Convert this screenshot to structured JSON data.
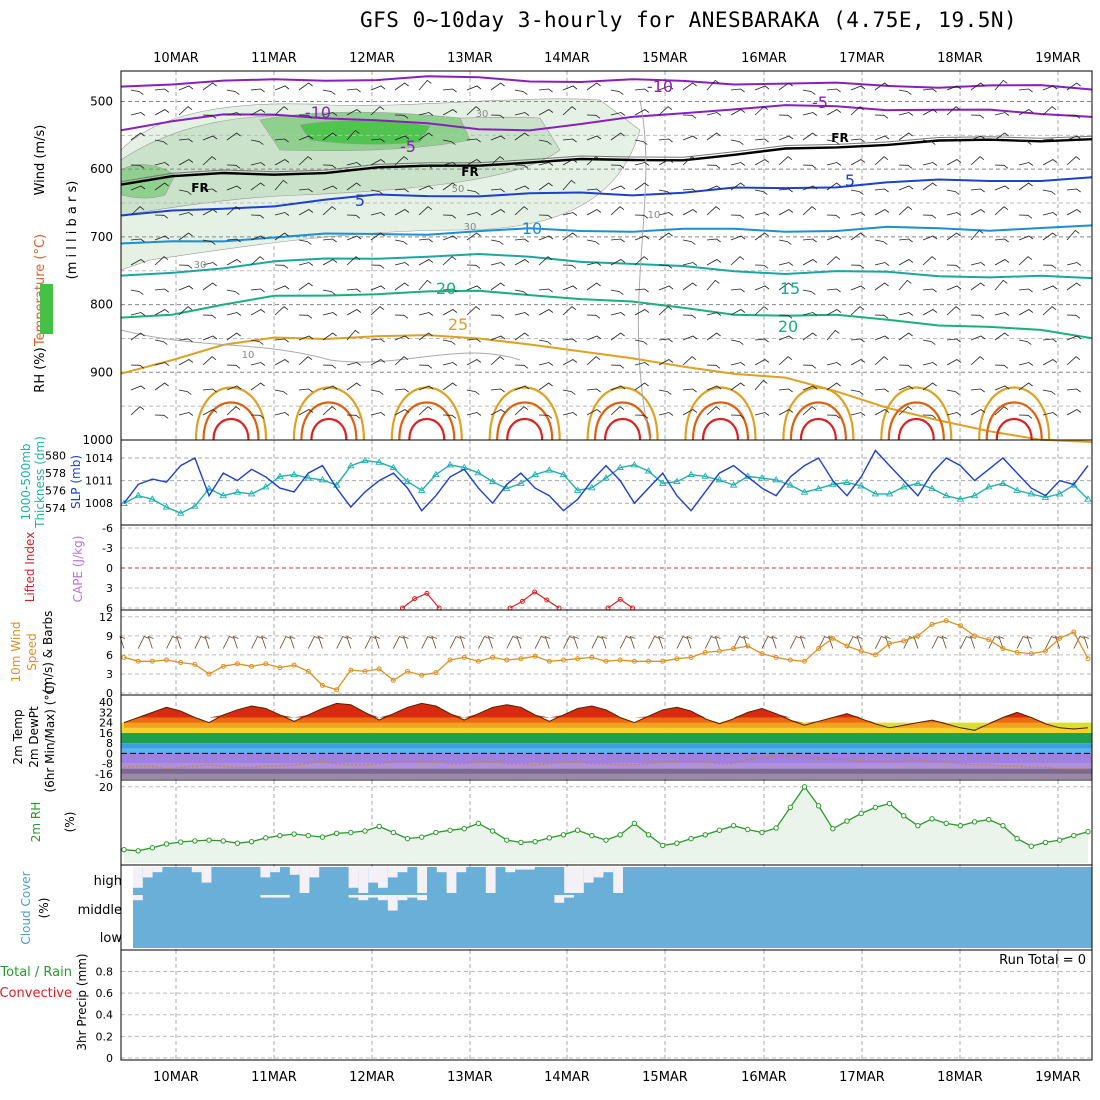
{
  "title": "GFS 0~10day 3-hourly for ANESBARAKA (4.75E, 19.5N)",
  "colors": {
    "purple": "#8a1fbf",
    "blue": "#1c3fd6",
    "lightblue": "#1c8fd6",
    "teal": "#18a8a0",
    "green": "#1ab07a",
    "orange": "#e0a020",
    "darkorange": "#e06010",
    "red": "#e02020",
    "slp": "#1c3fd6",
    "thickness": "#20b0b0",
    "wind10": "#e09020",
    "rh2m": "#2a9a2a",
    "cloud": "#6aafd8",
    "cloudgap": "#f3f0f6"
  },
  "chart_data": {
    "type": "line",
    "dates": [
      "10MAR",
      "11MAR",
      "12MAR",
      "13MAR",
      "14MAR",
      "15MAR",
      "16MAR",
      "17MAR",
      "18MAR",
      "19MAR"
    ],
    "panels": [
      {
        "name": "upper_air",
        "ylabel_parts": [
          {
            "text": "Wind (m/s)",
            "color": "#000000"
          },
          {
            "text": "Temperature (°C)",
            "color": "#e06030"
          },
          {
            "text": "(m i l l i b a r s)",
            "color": "#000000"
          },
          {
            "text": "RH (%)",
            "color": "#000000"
          }
        ],
        "yticks": [
          500,
          600,
          700,
          800,
          900,
          1000
        ],
        "ylim": [
          455,
          1000
        ],
        "contour_labels": [
          "-10",
          "-10",
          "-5",
          "-5",
          "FR",
          "FR",
          "FR",
          "5",
          "5",
          "10",
          "15",
          "20",
          "20",
          "25",
          "30",
          "30",
          "30",
          "50",
          "10",
          "10"
        ],
        "isotherms": [
          {
            "label": "-10",
            "color": "purple",
            "p": [
              478,
              472,
              470,
              470,
              468,
              466,
              465,
              466,
              468,
              470,
              470,
              470,
              472,
              474,
              475,
              476,
              477,
              478,
              478,
              480
            ]
          },
          {
            "label": "-5",
            "color": "purple",
            "p": [
              540,
              528,
              522,
              520,
              522,
              528,
              535,
              540,
              540,
              535,
              525,
              515,
              510,
              508,
              508,
              510,
              512,
              515,
              518,
              520
            ]
          },
          {
            "label": "FR",
            "color": "black",
            "p": [
              620,
              612,
              608,
              606,
              604,
              600,
              596,
              592,
              590,
              588,
              586,
              584,
              580,
              572,
              566,
              562,
              560,
              558,
              556,
              555
            ]
          },
          {
            "label": "5",
            "color": "blue",
            "p": [
              668,
              664,
              658,
              652,
              646,
              640,
              638,
              638,
              638,
              636,
              636,
              634,
              630,
              628,
              624,
              620,
              618,
              616,
              615,
              614
            ]
          },
          {
            "label": "10",
            "color": "lightblue",
            "p": [
              712,
              708,
              704,
              700,
              698,
              696,
              694,
              692,
              690,
              690,
              690,
              690,
              690,
              690,
              690,
              688,
              688,
              688,
              687,
              686
            ]
          },
          {
            "label": "15",
            "color": "teal",
            "p": [
              760,
              752,
              744,
              738,
              734,
              730,
              728,
              728,
              730,
              734,
              740,
              746,
              750,
              752,
              752,
              754,
              756,
              758,
              760,
              762
            ]
          },
          {
            "label": "20",
            "color": "green",
            "p": [
              820,
              812,
              800,
              790,
              786,
              782,
              782,
              782,
              784,
              790,
              798,
              806,
              812,
              816,
              818,
              822,
              828,
              834,
              840,
              848
            ]
          },
          {
            "label": "25",
            "color": "orange",
            "p": [
              900,
              880,
              862,
              850,
              848,
              846,
              848,
              850,
              856,
              870,
              882,
              890,
              900,
              910,
              930,
              950,
              970,
              990,
              1000,
              1000
            ]
          }
        ]
      },
      {
        "name": "slp_thickness",
        "ylabel_parts": [
          {
            "text": "1000-500mb",
            "color": "#20b0b0"
          },
          {
            "text": "Thickness (dm)",
            "color": "#20b0b0"
          },
          {
            "text": "SLP (mb)",
            "color": "#1c3fd6"
          }
        ],
        "left_ticks": [
          574,
          576,
          578,
          580
        ],
        "right_ticks": [
          1008,
          1011,
          1014
        ],
        "left_lim": [
          572.4,
          581.4
        ],
        "right_lim": [
          1005.5,
          1016
        ],
        "series": [
          {
            "name": "Thickness",
            "axis": "left",
            "values": [
              574.5,
              575.4,
              575.0,
              574.1,
              573.4,
              574.2,
              576.2,
              575.4,
              575.8,
              575.6,
              576.4,
              577.6,
              577.8,
              577.4,
              577.2,
              576.6,
              578.8,
              579.4,
              579.2,
              578.6,
              577.0,
              576.0,
              577.8,
              578.9,
              578.6,
              578.0,
              577.0,
              576.2,
              576.8,
              577.8,
              578.3,
              577.8,
              576.0,
              576.3,
              577.4,
              578.6,
              578.9,
              578.2,
              576.8,
              577.0,
              577.8,
              577.6,
              577.2,
              576.6,
              577.6,
              577.4,
              577.2,
              576.6,
              575.8,
              576.2,
              576.7,
              576.9,
              576.5,
              575.6,
              575.6,
              576.4,
              576.8,
              576.2,
              575.4,
              575.0,
              575.4,
              576.4,
              576.8,
              576.0,
              575.6,
              575.2,
              575.6,
              576.6,
              575.0
            ]
          },
          {
            "name": "SLP",
            "axis": "right",
            "values": [
              1008.0,
              1010.5,
              1011.2,
              1010.8,
              1013.0,
              1014.0,
              1009.0,
              1012.0,
              1011.0,
              1012.5,
              1011.5,
              1010.0,
              1009.5,
              1012.0,
              1013.0,
              1010.0,
              1007.5,
              1009.5,
              1011.0,
              1012.0,
              1010.0,
              1007.0,
              1009.0,
              1011.5,
              1012.5,
              1010.0,
              1008.0,
              1010.5,
              1012.0,
              1010.0,
              1009.0,
              1007.0,
              1008.5,
              1011.0,
              1013.0,
              1011.0,
              1008.0,
              1010.0,
              1012.0,
              1009.0,
              1007.0,
              1009.5,
              1012.0,
              1013.0,
              1011.5,
              1010.0,
              1009.0,
              1011.5,
              1013.0,
              1014.0,
              1011.0,
              1009.0,
              1011.5,
              1015.0,
              1013.0,
              1011.0,
              1009.0,
              1012.0,
              1014.0,
              1013.0,
              1011.0,
              1012.5,
              1014.0,
              1012.0,
              1010.0,
              1009.0,
              1011.0,
              1010.5,
              1013.0
            ]
          }
        ]
      },
      {
        "name": "li_cape",
        "ylabel_parts": [
          {
            "text": "Lifted Index",
            "color": "#e02020"
          },
          {
            "text": "CAPE (J/kg)",
            "color": "#c070e0"
          }
        ],
        "yticks": [
          "-6",
          "-3",
          "0",
          "3",
          "6"
        ],
        "ylim": [
          -6,
          6
        ],
        "segments": [
          {
            "x0": 2.7,
            "values": [
              6.0,
              4.6,
              3.8,
              6.0
            ]
          },
          {
            "x0": 3.8,
            "values": [
              6.0,
              5.0,
              3.6,
              4.8,
              6.0
            ]
          },
          {
            "x0": 4.8,
            "values": [
              6.0,
              4.7,
              6.0
            ]
          }
        ]
      },
      {
        "name": "wind10m",
        "ylabel_parts": [
          {
            "text": "10m Wind",
            "color": "#e09020"
          },
          {
            "text": "Speed",
            "color": "#e09020"
          },
          {
            "text": "(m/s) & Barbs",
            "color": "#000000"
          }
        ],
        "yticks": [
          0,
          3,
          6,
          9,
          12
        ],
        "ylim": [
          0,
          12.6
        ],
        "values": [
          5.6,
          5.0,
          5.0,
          5.2,
          4.8,
          4.5,
          3.0,
          4.2,
          4.6,
          4.2,
          4.6,
          4.0,
          4.4,
          3.4,
          1.2,
          0.5,
          3.6,
          3.4,
          3.8,
          2.0,
          3.4,
          2.8,
          3.2,
          5.2,
          5.6,
          5.0,
          5.6,
          5.2,
          5.4,
          5.8,
          5.0,
          5.2,
          5.4,
          5.6,
          5.0,
          5.2,
          5.0,
          5.0,
          5.0,
          5.4,
          5.6,
          6.4,
          6.6,
          7.0,
          7.4,
          6.2,
          5.6,
          5.2,
          5.0,
          7.0,
          8.6,
          7.4,
          6.6,
          6.0,
          7.8,
          8.2,
          9.0,
          10.8,
          11.4,
          10.6,
          9.0,
          8.4,
          7.0,
          6.4,
          6.2,
          6.6,
          8.6,
          9.6,
          5.4
        ]
      },
      {
        "name": "temp2m",
        "ylabel_parts": [
          {
            "text": "2m Temp",
            "color": "#000000"
          },
          {
            "text": "2m DewPt",
            "color": "#000000"
          },
          {
            "text": "(6hr Min/Max) (°C)",
            "color": "#000000"
          }
        ],
        "yticks": [
          40,
          32,
          24,
          16,
          8,
          0,
          -8,
          -16
        ],
        "ylim": [
          -20,
          44
        ],
        "temp": [
          24,
          28,
          32,
          36,
          33,
          28,
          24,
          30,
          34,
          37,
          35,
          30,
          25,
          30,
          35,
          39,
          38,
          32,
          26,
          31,
          36,
          39,
          37,
          31,
          26,
          31,
          36,
          38,
          36,
          30,
          25,
          30,
          35,
          37,
          34,
          28,
          24,
          29,
          34,
          36,
          33,
          27,
          23,
          27,
          32,
          35,
          31,
          26,
          22,
          25,
          28,
          31,
          27,
          23,
          20,
          22,
          24,
          26,
          23,
          20,
          18,
          23,
          28,
          32,
          28,
          23,
          20,
          19,
          20
        ],
        "dewpt": [
          -11,
          -10,
          -10,
          -12,
          -11,
          -10,
          -9,
          -10,
          -11,
          -11,
          -10,
          -10,
          -9,
          -8,
          -7,
          -8,
          -9,
          -9,
          -8,
          -7,
          -6,
          -7,
          -7,
          -8,
          -8,
          -7,
          -7,
          -8,
          -8,
          -9,
          -8,
          -7,
          -7,
          -8,
          -8,
          -9,
          -9,
          -8,
          -7,
          -7,
          -6,
          -7,
          -8,
          -8,
          -5,
          -3,
          -2,
          -2,
          -3,
          -4,
          -5,
          -5,
          -6,
          -6,
          -7,
          -6,
          -5,
          -6,
          -7,
          -8,
          -9,
          -9,
          -10,
          -10,
          -11,
          -11,
          -12,
          -12,
          -12
        ]
      },
      {
        "name": "rh2m",
        "ylabel_parts": [
          {
            "text": "2m RH",
            "color": "#2a9a2a"
          },
          {
            "text": "(%)",
            "color": "#000000"
          }
        ],
        "yticks": [
          20
        ],
        "ylim": [
          0,
          21
        ],
        "values": [
          3.5,
          3.2,
          4.0,
          5.0,
          5.5,
          5.8,
          6.0,
          5.8,
          5.2,
          5.6,
          6.6,
          7.2,
          7.6,
          7.2,
          6.8,
          7.8,
          8.0,
          8.4,
          9.6,
          8.0,
          6.4,
          6.8,
          8.0,
          8.6,
          9.0,
          10.4,
          8.4,
          6.0,
          5.4,
          5.6,
          6.6,
          7.4,
          8.6,
          7.2,
          6.0,
          7.4,
          10.4,
          7.4,
          4.6,
          5.2,
          6.4,
          7.4,
          8.6,
          9.8,
          8.8,
          8.0,
          9.2,
          14.6,
          20.0,
          15.0,
          9.0,
          11.0,
          13.0,
          14.6,
          15.6,
          12.4,
          9.8,
          11.6,
          10.4,
          9.8,
          10.8,
          11.4,
          9.8,
          6.4,
          4.4,
          5.4,
          6.0,
          7.2,
          8.2
        ]
      },
      {
        "name": "cloud_cover",
        "ylabel_parts": [
          {
            "text": "Cloud Cover",
            "color": "#4aa0d0"
          },
          {
            "text": "(%)",
            "color": "#000000"
          }
        ],
        "levels": [
          "high",
          "middle",
          "low"
        ],
        "high_gap": [
          0.8,
          0.4,
          0.2,
          0.0,
          0.0,
          0.0,
          0.2,
          0.6,
          0.0,
          0.0,
          0.0,
          0.0,
          0.0,
          0.4,
          0.2,
          0.0,
          0.3,
          1.0,
          0.4,
          0.0,
          0.0,
          0.0,
          0.8,
          1.0,
          0.6,
          0.8,
          0.4,
          0.2,
          0.0,
          1.0,
          0.0,
          0.2,
          1.0,
          0.2,
          0.0,
          0.0,
          1.0,
          0.0,
          0.2,
          0.1,
          0.1,
          0.0,
          0.0,
          0.0,
          1.0,
          1.0,
          0.6,
          0.4,
          0.2,
          1.0,
          0.0,
          0.0
        ],
        "mid_gap": [
          0.2,
          0.0,
          0.0,
          0.0,
          0.0,
          0.0,
          0.0,
          0.0,
          0.0,
          0.0,
          0.0,
          0.0,
          0.0,
          0.1,
          0.1,
          0.1,
          0.0,
          0.0,
          0.0,
          0.0,
          0.0,
          0.0,
          0.1,
          0.2,
          0.1,
          0.2,
          0.6,
          0.2,
          0.1,
          0.2,
          0.0,
          0.0,
          0.0,
          0.0,
          0.0,
          0.0,
          0.0,
          0.0,
          0.0,
          0.0,
          0.0,
          0.0,
          0.0,
          0.3,
          0.1,
          0.0,
          0.0,
          0.0,
          0.0,
          0.0,
          0.0,
          0.0
        ]
      },
      {
        "name": "precip",
        "ylabel_parts": [
          {
            "text": "Total / Rain",
            "color": "#2a9a2a"
          },
          {
            "text": "Convective",
            "color": "#e02020"
          },
          {
            "text": "3hr Precip (mm)",
            "color": "#000000"
          }
        ],
        "yticks": [
          "0",
          "0.2",
          "0.4",
          "0.6",
          "0.8"
        ],
        "ylim": [
          0,
          0.98
        ],
        "run_total": "Run Total = 0"
      }
    ]
  }
}
